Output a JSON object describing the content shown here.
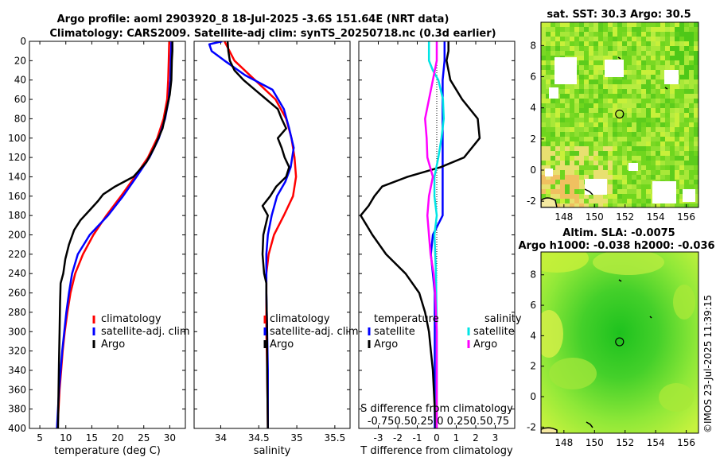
{
  "titles": {
    "line1": "Argo profile: aoml 2903920_8 18-Jul-2025 -3.6S 151.64E (NRT data)",
    "line2": "Climatology: CARS2009. Satellite-adj clim: synTS_20250718.nc (0.3d earlier)",
    "sst_map": "sat. SST: 30.3 Argo: 30.5",
    "sla_map_1": "Altim. SLA: -0.0075",
    "sla_map_2": "Argo h1000: -0.038 h2000: -0.036"
  },
  "stamp": "©IMOS 23-Jul-2025 11:39:15",
  "colors": {
    "climatology": "#ff0000",
    "satellite": "#0000ff",
    "argo": "#000000",
    "sal_satellite": "#00e5e5",
    "sal_argo": "#ff00ff",
    "map_green": "#33d11a",
    "map_yellow": "#c8f03a",
    "map_orange": "#f0c060"
  },
  "depth_axis": {
    "ylim": [
      0,
      400
    ],
    "ticks": [
      0,
      20,
      40,
      60,
      80,
      100,
      120,
      140,
      160,
      180,
      200,
      220,
      240,
      260,
      280,
      300,
      320,
      340,
      360,
      380,
      400
    ]
  },
  "chart_data": [
    {
      "type": "line",
      "name": "temperature",
      "xlabel": "temperature (deg C)",
      "xlim": [
        3,
        33
      ],
      "xticks": [
        5,
        10,
        15,
        20,
        25,
        30
      ],
      "depth": [
        0,
        20,
        40,
        60,
        80,
        100,
        120,
        140,
        160,
        180,
        200,
        220,
        240,
        260,
        280,
        300,
        320,
        340,
        360,
        380,
        400
      ],
      "legend": [
        "climatology",
        "satellite-adj. clim",
        "Argo"
      ],
      "series": [
        {
          "name": "climatology",
          "color": "#ff0000",
          "depth": [
            0,
            20,
            40,
            60,
            80,
            100,
            120,
            140,
            160,
            180,
            200,
            220,
            240,
            260,
            280,
            300,
            320,
            340,
            360,
            380,
            400
          ],
          "values": [
            29.9,
            29.8,
            29.7,
            29.5,
            28.8,
            27.6,
            25.8,
            23.3,
            20.6,
            17.8,
            15.3,
            13.3,
            11.8,
            10.9,
            10.3,
            9.8,
            9.4,
            9.1,
            8.8,
            8.6,
            8.4
          ]
        },
        {
          "name": "satellite-adj. clim",
          "color": "#0000ff",
          "depth": [
            0,
            20,
            40,
            60,
            80,
            100,
            120,
            140,
            160,
            180,
            200,
            220,
            240,
            260,
            280,
            300,
            320,
            340,
            360,
            380,
            400
          ],
          "values": [
            30.3,
            30.2,
            30.1,
            29.8,
            29.1,
            27.9,
            26.1,
            23.6,
            21.0,
            18.1,
            14.6,
            12.3,
            11.2,
            10.6,
            10.1,
            9.7,
            9.3,
            9.0,
            8.7,
            8.5,
            8.3
          ]
        },
        {
          "name": "Argo",
          "color": "#000000",
          "depth": [
            0,
            10,
            20,
            40,
            55,
            70,
            90,
            110,
            125,
            140,
            150,
            158,
            165,
            175,
            185,
            195,
            210,
            225,
            240,
            250,
            270,
            300,
            330,
            360,
            400
          ],
          "values": [
            30.5,
            30.5,
            30.4,
            30.3,
            30.0,
            29.4,
            28.6,
            27.0,
            25.5,
            23.0,
            19.5,
            17.2,
            16.2,
            14.5,
            12.8,
            11.6,
            10.6,
            9.9,
            9.5,
            9.0,
            8.9,
            8.8,
            8.7,
            8.6,
            8.5
          ]
        }
      ]
    },
    {
      "type": "line",
      "name": "salinity",
      "xlabel": "salinity",
      "xlim": [
        33.65,
        35.7
      ],
      "xticks": [
        34,
        34.5,
        35,
        35.5
      ],
      "legend": [
        "climatology",
        "satellite-adj. clim",
        "Argo"
      ],
      "series": [
        {
          "name": "climatology",
          "color": "#ff0000",
          "depth": [
            0,
            20,
            40,
            60,
            80,
            100,
            120,
            140,
            160,
            180,
            200,
            220,
            240,
            260,
            280,
            300,
            340,
            400
          ],
          "values": [
            34.05,
            34.18,
            34.45,
            34.72,
            34.86,
            34.93,
            34.97,
            34.99,
            34.95,
            34.83,
            34.7,
            34.63,
            34.6,
            34.6,
            34.6,
            34.6,
            34.61,
            34.62
          ]
        },
        {
          "name": "satellite-adj. clim",
          "color": "#0000ff",
          "depth": [
            0,
            3,
            10,
            20,
            35,
            50,
            70,
            90,
            110,
            130,
            145,
            160,
            180,
            200,
            220,
            240,
            260,
            300,
            340,
            400
          ],
          "values": [
            34.02,
            33.85,
            33.88,
            34.05,
            34.32,
            34.68,
            34.83,
            34.9,
            34.96,
            34.92,
            34.85,
            34.74,
            34.67,
            34.62,
            34.6,
            34.6,
            34.6,
            34.61,
            34.62,
            34.62
          ]
        },
        {
          "name": "Argo",
          "color": "#000000",
          "depth": [
            0,
            10,
            20,
            30,
            40,
            50,
            60,
            70,
            80,
            90,
            100,
            110,
            120,
            130,
            140,
            150,
            160,
            170,
            180,
            200,
            220,
            240,
            250,
            260,
            300,
            340,
            400
          ],
          "values": [
            34.09,
            34.1,
            34.12,
            34.18,
            34.3,
            34.45,
            34.6,
            34.75,
            34.8,
            34.86,
            34.75,
            34.8,
            34.84,
            34.9,
            34.86,
            34.73,
            34.65,
            34.55,
            34.62,
            34.56,
            34.55,
            34.57,
            34.6,
            34.6,
            34.61,
            34.61,
            34.62
          ]
        }
      ]
    },
    {
      "type": "line",
      "name": "differences",
      "xlabel": "T difference from climatology",
      "xlim": [
        -4,
        4
      ],
      "xticks": [
        -3,
        -2,
        -1,
        0,
        1,
        2,
        3
      ],
      "secondary_axis": {
        "label": "S difference from climatology",
        "tick_labels": [
          "-0.75",
          "-0.5",
          "-0.25",
          "0",
          "0.25",
          "0.5",
          "0.75"
        ],
        "tick_text": "-0.750.50.25  0  0.250.50.75"
      },
      "legend": {
        "temperature_header": "temperature",
        "salinity_header": "salinity",
        "entries": [
          "satellite",
          "Argo",
          "satellite",
          "Argo"
        ]
      },
      "series": [
        {
          "name": "T satellite",
          "color": "#0000ff",
          "depth": [
            0,
            20,
            40,
            60,
            80,
            100,
            120,
            140,
            160,
            180,
            200,
            220,
            240,
            260,
            300,
            340,
            400
          ],
          "values": [
            0.4,
            0.4,
            0.3,
            0.3,
            0.3,
            0.3,
            0.3,
            0.3,
            0.3,
            0.3,
            -0.2,
            -0.3,
            -0.2,
            -0.1,
            -0.1,
            -0.1,
            -0.1
          ]
        },
        {
          "name": "T Argo",
          "color": "#000000",
          "depth": [
            0,
            10,
            20,
            40,
            60,
            80,
            100,
            120,
            130,
            140,
            150,
            160,
            170,
            180,
            190,
            200,
            220,
            240,
            260,
            280,
            300,
            320,
            340,
            360,
            380,
            400
          ],
          "values": [
            0.6,
            0.6,
            0.5,
            0.7,
            1.3,
            2.1,
            2.2,
            1.4,
            0.2,
            -1.5,
            -2.8,
            -3.2,
            -3.5,
            -3.9,
            -3.6,
            -3.3,
            -2.6,
            -1.6,
            -0.9,
            -0.6,
            -0.4,
            -0.3,
            -0.2,
            -0.15,
            -0.1,
            -0.05
          ]
        },
        {
          "name": "S satellite",
          "color": "#00e5e5",
          "depth": [
            0,
            20,
            30,
            40,
            60,
            80,
            100,
            120,
            140,
            160,
            180,
            200,
            240,
            300,
            340,
            400
          ],
          "values": [
            -0.1,
            -0.1,
            -0.05,
            0.02,
            0.08,
            0.09,
            0.06,
            0.02,
            -0.03,
            -0.03,
            0.0,
            -0.03,
            -0.01,
            0.0,
            0.0,
            0.0
          ]
        },
        {
          "name": "S Argo",
          "color": "#ff00ff",
          "depth": [
            0,
            20,
            40,
            60,
            80,
            100,
            120,
            140,
            160,
            180,
            200,
            220,
            240,
            260,
            280,
            300,
            340,
            400
          ],
          "values": [
            0.0,
            0.0,
            -0.05,
            -0.1,
            -0.15,
            -0.13,
            -0.12,
            -0.05,
            -0.1,
            -0.12,
            -0.1,
            -0.08,
            -0.04,
            -0.02,
            -0.01,
            0.0,
            0.0,
            0.0
          ]
        }
      ]
    },
    {
      "type": "heatmap",
      "name": "sst_map",
      "title": "sat. SST: 30.3 Argo: 30.5",
      "xlim": [
        146.5,
        156.8
      ],
      "ylim": [
        -2.4,
        9.5
      ],
      "xticks": [
        148,
        150,
        152,
        154,
        156
      ],
      "yticks": [
        -2,
        0,
        2,
        4,
        6,
        8
      ],
      "argo_position": {
        "lon": 151.64,
        "lat": 3.6
      }
    },
    {
      "type": "heatmap",
      "name": "sla_map",
      "title": "Altim. SLA: -0.0075 / Argo h1000: -0.038 h2000: -0.036",
      "xlim": [
        146.5,
        156.8
      ],
      "ylim": [
        -2.4,
        9.5
      ],
      "xticks": [
        148,
        150,
        152,
        154,
        156
      ],
      "yticks": [
        -2,
        0,
        2,
        4,
        6,
        8
      ],
      "argo_position": {
        "lon": 151.64,
        "lat": 3.6
      }
    }
  ]
}
